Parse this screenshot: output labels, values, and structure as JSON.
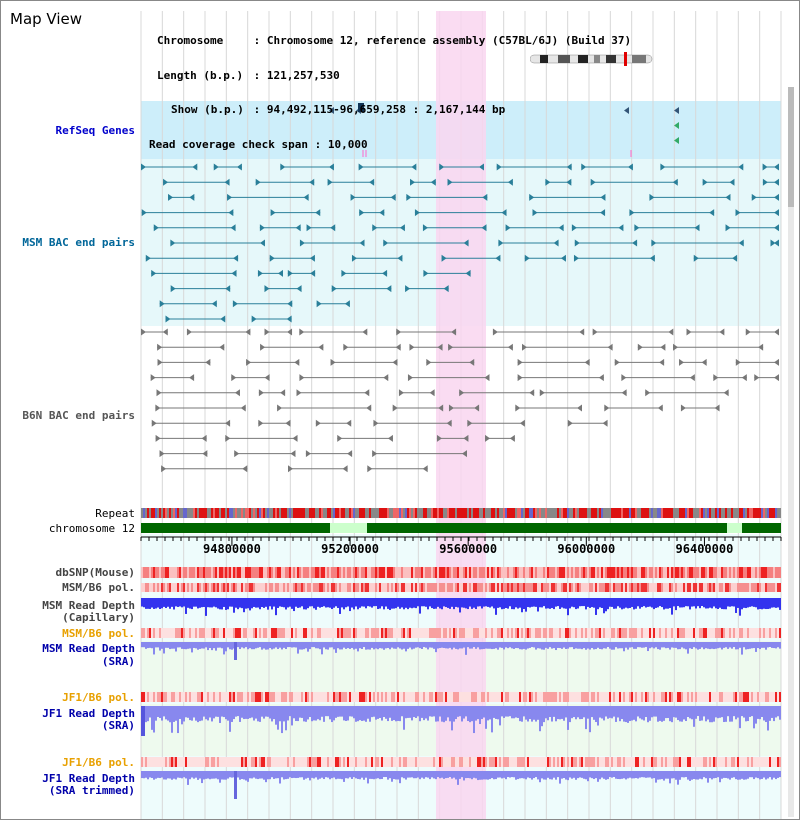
{
  "title": "Map View",
  "info": {
    "chromosome_label": "Chromosome",
    "chromosome_value": "Chromosome 12, reference assembly (C57BL/6J) (Build 37)",
    "length_label": "Length (b.p.)",
    "length_value": "121,257,530",
    "show_label": "Show (b.p.)",
    "show_value": "94,492,115-96,659,258 : 2,167,144 bp",
    "span_label": "Read coverage check span",
    "span_value": "10,000",
    "separator": ":"
  },
  "axis": {
    "start": 94492115,
    "end": 96659258,
    "ticks": [
      {
        "value": 94800000,
        "label": "94800000"
      },
      {
        "value": 95200000,
        "label": "95200000"
      },
      {
        "value": 95600000,
        "label": "95600000"
      },
      {
        "value": 96000000,
        "label": "96000000"
      },
      {
        "value": 96400000,
        "label": "96400000"
      }
    ]
  },
  "tracks": {
    "refseq": {
      "label": "RefSeq Genes",
      "color": "#0000cc"
    },
    "msm_bac": {
      "label": "MSM BAC end pairs",
      "color": "#006699"
    },
    "b6n_bac": {
      "label": "B6N BAC end pairs",
      "color": "#555555"
    },
    "repeat": {
      "label": "Repeat",
      "color": "#000000"
    },
    "chromosome": {
      "label": "chromosome 12",
      "color": "#000000"
    },
    "dbsnp": {
      "label": "dbSNP(Mouse)",
      "color": "#444444"
    },
    "msm_b6_pol": {
      "label": "MSM/B6 pol.",
      "color": "#444444"
    },
    "msm_depth_cap": {
      "label": "MSM Read Depth",
      "sub": "(Capillary)",
      "color": "#444444"
    },
    "msm_b6_pol2": {
      "label": "MSM/B6 pol.",
      "color": "#e8a000"
    },
    "msm_depth_sra": {
      "label": "MSM Read Depth",
      "sub": "(SRA)",
      "color": "#0000aa"
    },
    "jf1_b6_pol": {
      "label": "JF1/B6 pol.",
      "color": "#e8a000"
    },
    "jf1_depth_sra": {
      "label": "JF1 Read Depth",
      "sub": "(SRA)",
      "color": "#0000aa"
    },
    "jf1_b6_pol2": {
      "label": "JF1/B6 pol.",
      "color": "#e8a000"
    },
    "jf1_depth_trim": {
      "label": "JF1 Read Depth",
      "sub": "(SRA trimmed)",
      "color": "#0000aa"
    }
  },
  "colors": {
    "highlight": "#f9d6f0",
    "refseq_bg": "#cdeefa",
    "msm_bg": "#e6f8fa",
    "chromosome_band": "#006600",
    "chromosome_gap": "#ccffcc",
    "depth_cap": "#3333ee",
    "depth_sra": "#8888ee"
  }
}
